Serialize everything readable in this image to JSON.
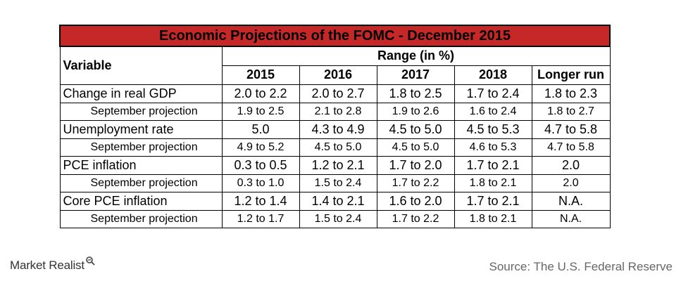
{
  "table": {
    "title": "Economic Projections of the FOMC - December 2015",
    "variable_header": "Variable",
    "range_header": "Range (in %)",
    "years": [
      "2015",
      "2016",
      "2017",
      "2018",
      "Longer run"
    ],
    "rows": [
      {
        "type": "main",
        "label": "Change in real GDP",
        "values": [
          "2.0 to 2.2",
          "2.0 to 2.7",
          "1.8 to 2.5",
          "1.7 to 2.4",
          "1.8 to 2.3"
        ]
      },
      {
        "type": "sep",
        "label": "September projection",
        "values": [
          "1.9 to 2.5",
          "2.1 to 2.8",
          "1.9 to 2.6",
          "1.6 to 2.4",
          "1.8 to 2.7"
        ]
      },
      {
        "type": "main",
        "label": "Unemployment rate",
        "values": [
          "5.0",
          "4.3 to 4.9",
          "4.5 to 5.0",
          "4.5 to 5.3",
          "4.7 to 5.8"
        ]
      },
      {
        "type": "sep",
        "label": "September projection",
        "values": [
          "4.9 to 5.2",
          "4.5 to 5.0",
          "4.5 to 5.0",
          "4.6 to 5.3",
          "4.7 to 5.8"
        ]
      },
      {
        "type": "main",
        "label": "PCE inflation",
        "values": [
          "0.3 to 0.5",
          "1.2 to 2.1",
          "1.7 to 2.0",
          "1.7 to 2.1",
          "2.0"
        ]
      },
      {
        "type": "sep",
        "label": "September projection",
        "values": [
          "0.3 to 1.0",
          "1.5 to 2.4",
          "1.7 to 2.2",
          "1.8 to 2.1",
          "2.0"
        ]
      },
      {
        "type": "main",
        "label": "Core PCE inflation",
        "values": [
          "1.2 to 1.4",
          "1.4 to 2.1",
          "1.6 to 2.0",
          "1.7 to 2.1",
          "N.A."
        ]
      },
      {
        "type": "sep",
        "label": "September projection",
        "values": [
          "1.2 to 1.7",
          "1.5 to 2.4",
          "1.7 to 2.2",
          "1.8 to 2.1",
          "N.A."
        ]
      }
    ]
  },
  "footer": {
    "brand": "Market Realist",
    "brand_icon": "magnifier-icon",
    "source": "Source: The U.S. Federal Reserve"
  },
  "colors": {
    "title_bg": "#c62828",
    "source_text": "#666666"
  }
}
